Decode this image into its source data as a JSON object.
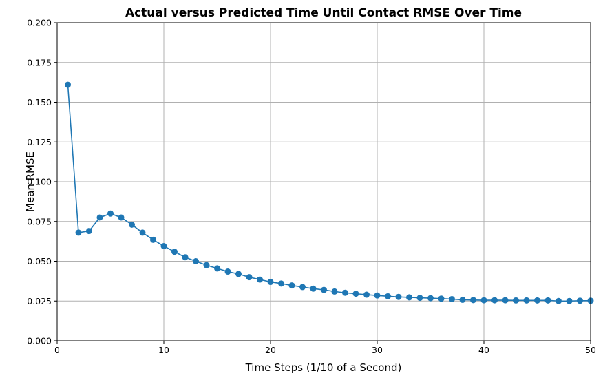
{
  "chart_data": {
    "type": "line",
    "title": "Actual versus Predicted Time Until Contact RMSE Over Time",
    "xlabel": "Time Steps (1/10 of a Second)",
    "ylabel": "Mean RMSE",
    "xlim": [
      0,
      50
    ],
    "ylim": [
      0,
      0.2
    ],
    "xticks": [
      0,
      10,
      20,
      30,
      40,
      50
    ],
    "xtick_labels": [
      "0",
      "10",
      "20",
      "30",
      "40",
      "50"
    ],
    "yticks": [
      0,
      0.025,
      0.05,
      0.075,
      0.1,
      0.125,
      0.15,
      0.175,
      0.2
    ],
    "ytick_labels": [
      "0.000",
      "0.025",
      "0.050",
      "0.075",
      "0.100",
      "0.125",
      "0.150",
      "0.175",
      "0.200"
    ],
    "grid": true,
    "markers": "circle",
    "color": "#1f77b4",
    "series": [
      {
        "x": [
          1,
          2,
          3,
          4,
          5,
          6,
          7,
          8,
          9,
          10,
          11,
          12,
          13,
          14,
          15,
          16,
          17,
          18,
          19,
          20,
          21,
          22,
          23,
          24,
          25,
          26,
          27,
          28,
          29,
          30,
          31,
          32,
          33,
          34,
          35,
          36,
          37,
          38,
          39,
          40,
          41,
          42,
          43,
          44,
          45,
          46,
          47,
          48,
          49,
          50
        ],
        "values": [
          0.161,
          0.068,
          0.069,
          0.0775,
          0.08,
          0.0775,
          0.073,
          0.068,
          0.0635,
          0.0595,
          0.056,
          0.0525,
          0.05,
          0.0475,
          0.0455,
          0.0435,
          0.042,
          0.04,
          0.0385,
          0.037,
          0.036,
          0.0348,
          0.0338,
          0.0328,
          0.032,
          0.031,
          0.0302,
          0.0296,
          0.029,
          0.0285,
          0.028,
          0.0276,
          0.0273,
          0.027,
          0.0268,
          0.0265,
          0.0262,
          0.0258,
          0.0256,
          0.0255,
          0.0255,
          0.0255,
          0.0254,
          0.0254,
          0.0254,
          0.0254,
          0.025,
          0.025,
          0.0252,
          0.0252
        ]
      }
    ]
  }
}
